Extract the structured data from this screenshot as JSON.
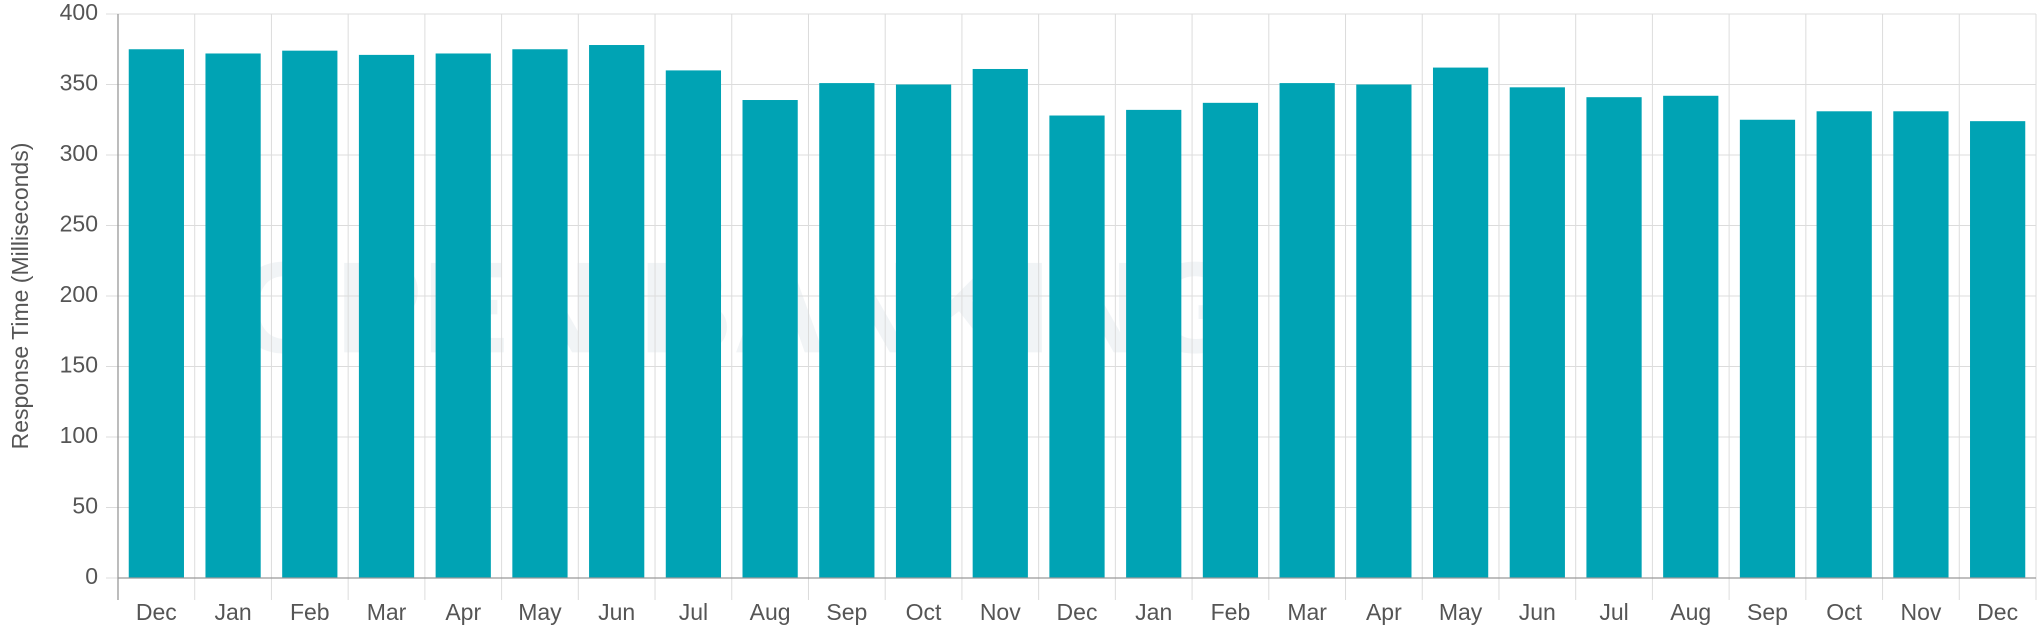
{
  "chart_data": {
    "type": "bar",
    "y_label": "Response Time (Milliseconds)",
    "watermark": "OPEN BANKING",
    "categories": [
      "Dec",
      "Jan",
      "Feb",
      "Mar",
      "Apr",
      "May",
      "Jun",
      "Jul",
      "Aug",
      "Sep",
      "Oct",
      "Nov",
      "Dec",
      "Jan",
      "Feb",
      "Mar",
      "Apr",
      "May",
      "Jun",
      "Jul",
      "Aug",
      "Sep",
      "Oct",
      "Nov",
      "Dec"
    ],
    "values": [
      375,
      372,
      374,
      371,
      372,
      375,
      378,
      360,
      339,
      351,
      350,
      361,
      328,
      332,
      337,
      351,
      350,
      362,
      348,
      341,
      342,
      325,
      331,
      331,
      324
    ],
    "color": "#00a3b4",
    "ylim": [
      0,
      400
    ],
    "yticks": [
      0,
      50,
      100,
      150,
      200,
      250,
      300,
      350,
      400
    ],
    "grid": true
  }
}
